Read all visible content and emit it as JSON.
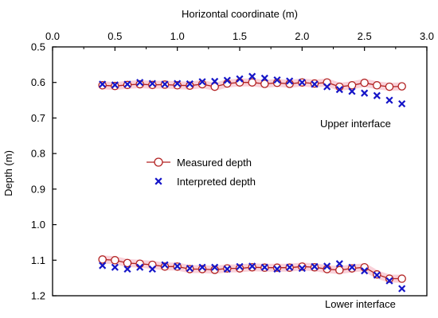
{
  "chart_data": {
    "type": "scatter",
    "xlabel": "Horizontal coordinate (m)",
    "ylabel": "Depth (m)",
    "xlim": [
      0.0,
      3.0
    ],
    "ylim": [
      0.5,
      1.2
    ],
    "y_inverted": true,
    "x_axis_position": "top",
    "grid": false,
    "legend_position": "center-left",
    "x_ticks": [
      "0.0",
      "0.5",
      "1.0",
      "1.5",
      "2.0",
      "2.5",
      "3.0"
    ],
    "y_ticks": [
      "0.5",
      "0.6",
      "0.7",
      "0.8",
      "0.9",
      "1.0",
      "1.1",
      "1.2"
    ],
    "annotations": [
      {
        "text": "Upper interface"
      },
      {
        "text": "Lower interface"
      }
    ],
    "series": [
      {
        "name": "Measured depth",
        "marker": "open-circle-line",
        "color": "#b22222",
        "band_color": "#f7c6d0",
        "groups": [
          {
            "x": [
              0.4,
              0.5,
              0.6,
              0.7,
              0.8,
              0.9,
              1.0,
              1.1,
              1.2,
              1.3,
              1.4,
              1.5,
              1.6,
              1.7,
              1.8,
              1.9,
              2.0,
              2.1,
              2.2,
              2.3,
              2.4,
              2.5,
              2.6,
              2.7,
              2.8
            ],
            "y": [
              0.608,
              0.61,
              0.607,
              0.605,
              0.607,
              0.606,
              0.608,
              0.609,
              0.605,
              0.612,
              0.603,
              0.6,
              0.6,
              0.604,
              0.601,
              0.604,
              0.6,
              0.603,
              0.6,
              0.612,
              0.608,
              0.601,
              0.608,
              0.612,
              0.611
            ]
          },
          {
            "x": [
              0.4,
              0.5,
              0.6,
              0.7,
              0.8,
              0.9,
              1.0,
              1.1,
              1.2,
              1.3,
              1.4,
              1.5,
              1.6,
              1.7,
              1.8,
              1.9,
              2.0,
              2.1,
              2.2,
              2.3,
              2.4,
              2.5,
              2.6,
              2.7,
              2.8
            ],
            "y": [
              1.098,
              1.1,
              1.108,
              1.11,
              1.113,
              1.118,
              1.118,
              1.125,
              1.125,
              1.127,
              1.123,
              1.123,
              1.12,
              1.121,
              1.121,
              1.121,
              1.118,
              1.12,
              1.125,
              1.128,
              1.123,
              1.12,
              1.14,
              1.152,
              1.152
            ]
          }
        ]
      },
      {
        "name": "Interpreted depth",
        "marker": "x",
        "color": "#1515c8",
        "groups": [
          {
            "x": [
              0.4,
              0.5,
              0.6,
              0.7,
              0.8,
              0.9,
              1.0,
              1.1,
              1.2,
              1.3,
              1.4,
              1.5,
              1.6,
              1.7,
              1.8,
              1.9,
              2.0,
              2.1,
              2.2,
              2.3,
              2.4,
              2.5,
              2.6,
              2.7,
              2.8
            ],
            "y": [
              0.605,
              0.607,
              0.605,
              0.6,
              0.603,
              0.605,
              0.603,
              0.604,
              0.598,
              0.597,
              0.594,
              0.59,
              0.583,
              0.588,
              0.593,
              0.596,
              0.6,
              0.605,
              0.612,
              0.62,
              0.625,
              0.63,
              0.637,
              0.65,
              0.66
            ]
          },
          {
            "x": [
              0.4,
              0.5,
              0.6,
              0.7,
              0.8,
              0.9,
              1.0,
              1.1,
              1.2,
              1.3,
              1.4,
              1.5,
              1.6,
              1.7,
              1.8,
              1.9,
              2.0,
              2.1,
              2.2,
              2.3,
              2.4,
              2.5,
              2.6,
              2.7,
              2.8
            ],
            "y": [
              1.115,
              1.12,
              1.125,
              1.12,
              1.125,
              1.113,
              1.117,
              1.123,
              1.12,
              1.12,
              1.125,
              1.118,
              1.117,
              1.12,
              1.125,
              1.12,
              1.123,
              1.118,
              1.117,
              1.11,
              1.12,
              1.13,
              1.142,
              1.158,
              1.18
            ]
          }
        ]
      }
    ]
  }
}
